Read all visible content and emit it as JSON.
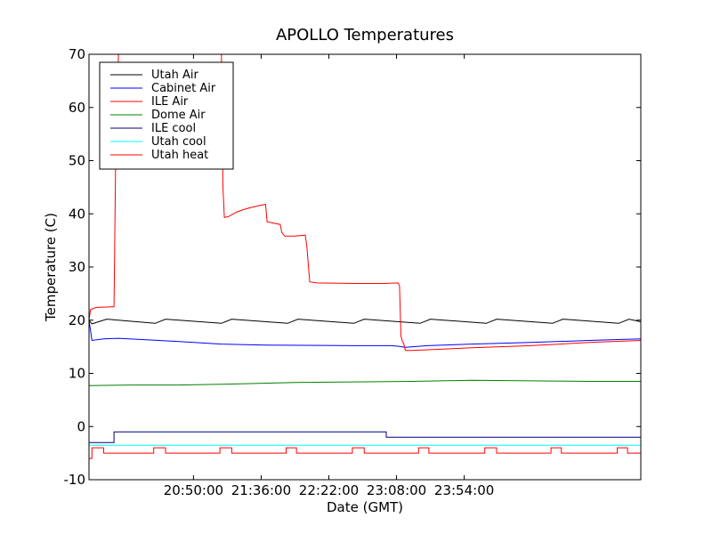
{
  "chart_data": {
    "type": "line",
    "title": "APOLLO Temperatures",
    "xlabel": "Date (GMT)",
    "ylabel": "Temperature (C)",
    "x_unit": "minutes since 19:39:00 GMT",
    "xlim": [
      0,
      375
    ],
    "ylim": [
      -10,
      70
    ],
    "yticks": [
      -10,
      0,
      10,
      20,
      30,
      40,
      50,
      60,
      70
    ],
    "xticks": [
      {
        "value": 71,
        "label": "20:50:00"
      },
      {
        "value": 117,
        "label": "21:36:00"
      },
      {
        "value": 163,
        "label": "22:22:00"
      },
      {
        "value": 209,
        "label": "23:08:00"
      },
      {
        "value": 255,
        "label": "23:54:00"
      }
    ],
    "legend_position": "top-left",
    "series": [
      {
        "name": "Utah Air",
        "color": "#000000",
        "points": [
          [
            0,
            20.0
          ],
          [
            2,
            19.3
          ],
          [
            12,
            20.2
          ],
          [
            45,
            19.4
          ],
          [
            52,
            20.2
          ],
          [
            90,
            19.4
          ],
          [
            97,
            20.2
          ],
          [
            135,
            19.4
          ],
          [
            142,
            20.2
          ],
          [
            180,
            19.4
          ],
          [
            187,
            20.2
          ],
          [
            225,
            19.4
          ],
          [
            232,
            20.2
          ],
          [
            270,
            19.4
          ],
          [
            277,
            20.2
          ],
          [
            315,
            19.4
          ],
          [
            322,
            20.2
          ],
          [
            360,
            19.4
          ],
          [
            367,
            20.2
          ],
          [
            375,
            19.7
          ]
        ]
      },
      {
        "name": "Cabinet Air",
        "color": "#0000ff",
        "points": [
          [
            0,
            20.0
          ],
          [
            2,
            16.2
          ],
          [
            10,
            16.5
          ],
          [
            20,
            16.6
          ],
          [
            60,
            16.0
          ],
          [
            90,
            15.5
          ],
          [
            120,
            15.3
          ],
          [
            180,
            15.2
          ],
          [
            200,
            15.2
          ],
          [
            205,
            15.2
          ],
          [
            210,
            15.1
          ],
          [
            215,
            14.9
          ],
          [
            230,
            15.2
          ],
          [
            260,
            15.5
          ],
          [
            300,
            15.8
          ],
          [
            340,
            16.2
          ],
          [
            375,
            16.5
          ]
        ]
      },
      {
        "name": "ILE Air",
        "color": "#ff0000",
        "points": [
          [
            0,
            20.0
          ],
          [
            1,
            22.0
          ],
          [
            5,
            22.4
          ],
          [
            16,
            22.5
          ],
          [
            17,
            22.5
          ],
          [
            18,
            48.0
          ],
          [
            19,
            60.0
          ],
          [
            20,
            70.0
          ],
          [
            90,
            70.0
          ],
          [
            91,
            45.0
          ],
          [
            92,
            39.3
          ],
          [
            95,
            39.5
          ],
          [
            100,
            40.3
          ],
          [
            105,
            40.8
          ],
          [
            110,
            41.2
          ],
          [
            115,
            41.5
          ],
          [
            120,
            41.8
          ],
          [
            121,
            38.5
          ],
          [
            130,
            38.0
          ],
          [
            131,
            36.5
          ],
          [
            133,
            35.8
          ],
          [
            140,
            35.8
          ],
          [
            147,
            36.0
          ],
          [
            148,
            34.0
          ],
          [
            150,
            27.2
          ],
          [
            155,
            27.0
          ],
          [
            180,
            26.9
          ],
          [
            200,
            26.9
          ],
          [
            210,
            27.0
          ],
          [
            211,
            26.5
          ],
          [
            212,
            17.0
          ],
          [
            213,
            16.0
          ],
          [
            214,
            15.5
          ],
          [
            215,
            14.3
          ],
          [
            220,
            14.3
          ],
          [
            260,
            14.8
          ],
          [
            300,
            15.2
          ],
          [
            340,
            15.8
          ],
          [
            375,
            16.2
          ]
        ]
      },
      {
        "name": "Dome Air",
        "color": "#008000",
        "points": [
          [
            0,
            7.7
          ],
          [
            30,
            7.8
          ],
          [
            60,
            7.8
          ],
          [
            100,
            8.0
          ],
          [
            140,
            8.3
          ],
          [
            180,
            8.4
          ],
          [
            220,
            8.5
          ],
          [
            260,
            8.7
          ],
          [
            300,
            8.6
          ],
          [
            340,
            8.5
          ],
          [
            375,
            8.5
          ]
        ]
      },
      {
        "name": "ILE cool",
        "color": "#000080",
        "points": [
          [
            0,
            -3.0
          ],
          [
            17,
            -3.0
          ],
          [
            17,
            -1.0
          ],
          [
            202,
            -1.0
          ],
          [
            202,
            -2.0
          ],
          [
            375,
            -2.0
          ]
        ]
      },
      {
        "name": "Utah cool",
        "color": "#00ffff",
        "points": [
          [
            0,
            -3.5
          ],
          [
            375,
            -3.5
          ]
        ]
      },
      {
        "name": "Utah heat",
        "color": "#ff0000",
        "points": [
          [
            0,
            -6.0
          ],
          [
            2,
            -6.0
          ],
          [
            2,
            -4.0
          ],
          [
            10,
            -4.0
          ],
          [
            10,
            -5.0
          ],
          [
            44,
            -5.0
          ],
          [
            44,
            -4.0
          ],
          [
            52,
            -4.0
          ],
          [
            52,
            -5.0
          ],
          [
            89,
            -5.0
          ],
          [
            89,
            -4.0
          ],
          [
            97,
            -4.0
          ],
          [
            97,
            -5.0
          ],
          [
            134,
            -5.0
          ],
          [
            134,
            -4.0
          ],
          [
            141,
            -4.0
          ],
          [
            141,
            -5.0
          ],
          [
            179,
            -5.0
          ],
          [
            179,
            -4.0
          ],
          [
            187,
            -4.0
          ],
          [
            187,
            -5.0
          ],
          [
            224,
            -5.0
          ],
          [
            224,
            -4.0
          ],
          [
            231,
            -4.0
          ],
          [
            231,
            -5.0
          ],
          [
            269,
            -5.0
          ],
          [
            269,
            -4.0
          ],
          [
            277,
            -4.0
          ],
          [
            277,
            -5.0
          ],
          [
            314,
            -5.0
          ],
          [
            314,
            -4.0
          ],
          [
            321,
            -4.0
          ],
          [
            321,
            -5.0
          ],
          [
            359,
            -5.0
          ],
          [
            359,
            -4.0
          ],
          [
            366,
            -4.0
          ],
          [
            366,
            -5.0
          ],
          [
            375,
            -5.0
          ]
        ]
      }
    ]
  }
}
